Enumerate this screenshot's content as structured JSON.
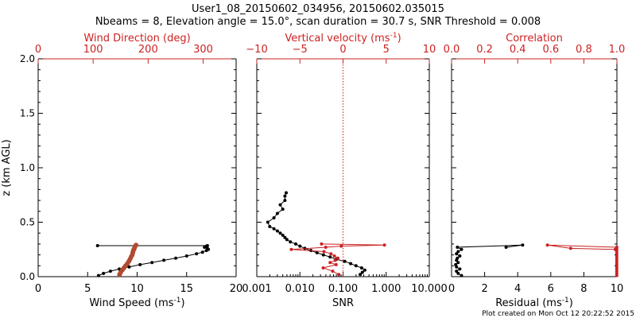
{
  "title_line1": "User1_08_20150602_034956, 20150602.035015",
  "title_line2": "Nbeams = 8, Elevation angle = 15.0°, scan duration = 30.7 s, SNR Threshold = 0.008",
  "footer": "Plot created on Mon Oct 12 20:22:52 2015",
  "colors": {
    "black": "#000000",
    "red": "#cc2222",
    "brown": "#b04a30"
  },
  "chart_data": [
    {
      "type": "line",
      "ylabel": "z (km AGL)",
      "ylim": [
        0,
        2.0
      ],
      "yticks": [
        "0.0",
        "0.5",
        "1.0",
        "1.5",
        "2.0"
      ],
      "bottom_axis": {
        "label": "Wind Speed (ms",
        "label_sup": "-1",
        "label_end": ")",
        "xlim": [
          0,
          20
        ],
        "ticks": [
          "0",
          "5",
          "10",
          "15",
          "20"
        ]
      },
      "top_axis": {
        "label": "Wind Direction (deg)",
        "xlim": [
          0,
          360
        ],
        "ticks": [
          "0",
          "100",
          "200",
          "300"
        ],
        "tick_values": [
          0,
          100,
          200,
          300
        ]
      },
      "series": [
        {
          "role": "wind_speed",
          "x": [
            6.1,
            6.6,
            7.3,
            8.2,
            9.2,
            10.3,
            11.5,
            12.7,
            13.9,
            15.0,
            16.0,
            16.6,
            17.0,
            17.2,
            17.1,
            16.8,
            16.9,
            17.0,
            17.1,
            6.0
          ],
          "y": [
            0.01,
            0.03,
            0.05,
            0.07,
            0.09,
            0.11,
            0.13,
            0.15,
            0.17,
            0.19,
            0.21,
            0.225,
            0.24,
            0.25,
            0.26,
            0.27,
            0.275,
            0.28,
            0.285,
            0.285
          ]
        },
        {
          "role": "wind_direction",
          "x": [
            148,
            150,
            153,
            156,
            159,
            162,
            165,
            167,
            169,
            171,
            172,
            173,
            174,
            175,
            176,
            178
          ],
          "y": [
            0.02,
            0.04,
            0.06,
            0.08,
            0.1,
            0.12,
            0.14,
            0.16,
            0.18,
            0.2,
            0.22,
            0.24,
            0.25,
            0.26,
            0.275,
            0.29
          ]
        }
      ]
    },
    {
      "type": "line",
      "ylim": [
        0,
        2.0
      ],
      "bottom_axis": {
        "label": "SNR",
        "scale": "log",
        "xlim": [
          0.001,
          10
        ],
        "ticks": [
          "0.001",
          "0.010",
          "0.100",
          "1.000",
          "10.000"
        ],
        "tick_values": [
          0.001,
          0.01,
          0.1,
          1,
          10
        ]
      },
      "top_axis": {
        "label": "Vertical velocity (ms",
        "label_sup": "-1",
        "label_end": ")",
        "xlim": [
          -10,
          10
        ],
        "ticks": [
          "−10",
          "−5",
          "0",
          "5",
          "10"
        ],
        "tick_values": [
          -10,
          -5,
          0,
          5,
          10
        ]
      },
      "zero_line": 0,
      "series": [
        {
          "role": "snr",
          "x": [
            0.25,
            0.28,
            0.32,
            0.27,
            0.2,
            0.15,
            0.11,
            0.07,
            0.05,
            0.035,
            0.025,
            0.018,
            0.013,
            0.01,
            0.008,
            0.006,
            0.005,
            0.0045,
            0.004,
            0.0035,
            0.003,
            0.0025,
            0.002,
            0.0018,
            0.0025,
            0.003,
            0.004,
            0.0035,
            0.0045,
            0.0045,
            0.0048
          ],
          "y": [
            0.02,
            0.04,
            0.06,
            0.08,
            0.1,
            0.12,
            0.14,
            0.16,
            0.18,
            0.2,
            0.22,
            0.24,
            0.26,
            0.28,
            0.3,
            0.32,
            0.34,
            0.36,
            0.38,
            0.4,
            0.42,
            0.44,
            0.46,
            0.5,
            0.54,
            0.58,
            0.62,
            0.66,
            0.7,
            0.74,
            0.77
          ]
        },
        {
          "role": "vertical_velocity",
          "x": [
            -0.5,
            -1.2,
            -2.3,
            -0.8,
            -1.5,
            -0.9,
            -0.6,
            -1.0,
            -1.4,
            -2.2,
            -6.0,
            -2.0,
            -0.2,
            4.8,
            -2.5
          ],
          "y": [
            0.02,
            0.05,
            0.08,
            0.11,
            0.13,
            0.15,
            0.17,
            0.19,
            0.21,
            0.23,
            0.25,
            0.27,
            0.28,
            0.29,
            0.3
          ]
        }
      ]
    },
    {
      "type": "line",
      "ylim": [
        0,
        2.0
      ],
      "bottom_axis": {
        "label": "Residual (ms",
        "label_sup": "-1",
        "label_end": ")",
        "xlim": [
          0,
          10
        ],
        "ticks": [
          "0",
          "2",
          "4",
          "6",
          "8",
          "10"
        ],
        "tick_values": [
          0,
          2,
          4,
          6,
          8,
          10
        ]
      },
      "top_axis": {
        "label": "Correlation",
        "xlim": [
          0,
          1.0
        ],
        "ticks": [
          "0.0",
          "0.2",
          "0.4",
          "0.6",
          "0.8",
          "1.0"
        ],
        "tick_values": [
          0,
          0.2,
          0.4,
          0.6,
          0.8,
          1.0
        ]
      },
      "series": [
        {
          "role": "residual",
          "x": [
            0.6,
            0.4,
            0.3,
            0.5,
            0.3,
            0.25,
            0.4,
            0.3,
            0.35,
            0.5,
            0.3,
            0.4,
            0.6,
            0.35,
            4.3,
            3.3
          ],
          "y": [
            0.01,
            0.03,
            0.05,
            0.07,
            0.09,
            0.11,
            0.13,
            0.15,
            0.17,
            0.19,
            0.21,
            0.23,
            0.25,
            0.27,
            0.29,
            0.27
          ]
        },
        {
          "role": "correlation",
          "x": [
            0.999,
            0.999,
            0.999,
            0.999,
            0.999,
            0.999,
            0.999,
            0.999,
            0.999,
            0.999,
            0.999,
            0.999,
            0.999,
            0.999,
            0.58,
            0.72,
            0.99
          ],
          "y": [
            0.01,
            0.03,
            0.05,
            0.07,
            0.09,
            0.11,
            0.13,
            0.15,
            0.17,
            0.19,
            0.21,
            0.23,
            0.25,
            0.27,
            0.29,
            0.26,
            0.25
          ]
        }
      ]
    }
  ]
}
